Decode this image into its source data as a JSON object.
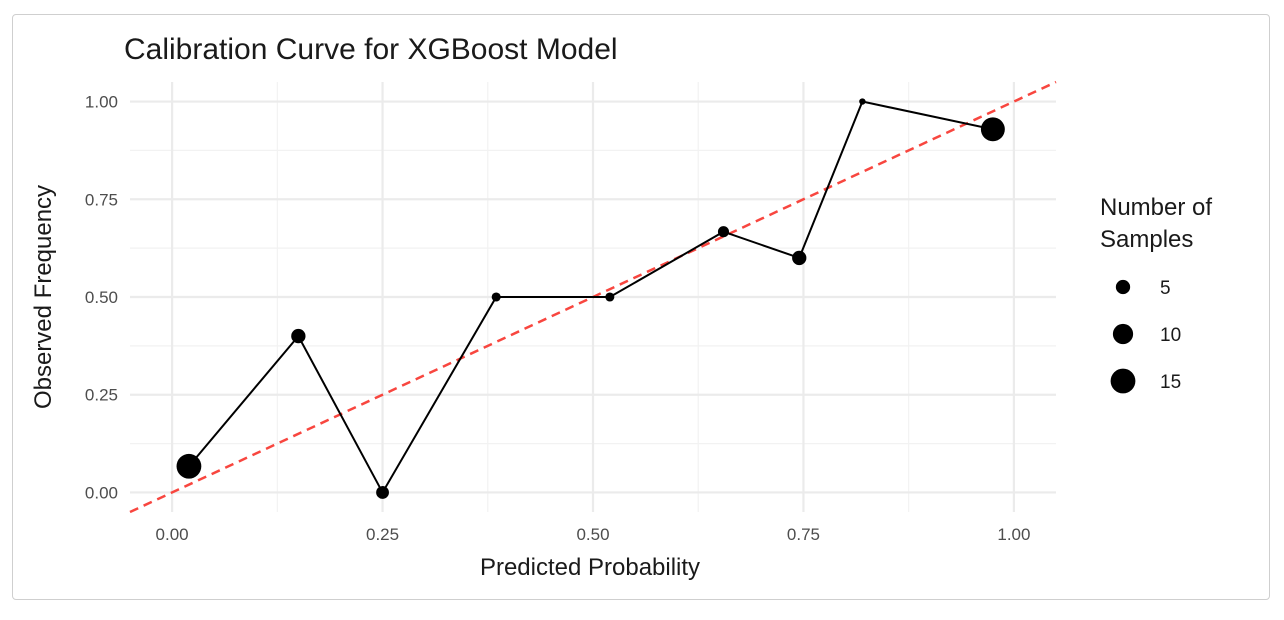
{
  "chart_data": {
    "type": "scatter",
    "title": "Calibration Curve for XGBoost Model",
    "xlabel": "Predicted Probability",
    "ylabel": "Observed Frequency",
    "xlim": [
      -0.05,
      1.05
    ],
    "ylim": [
      -0.05,
      1.05
    ],
    "x_ticks": [
      0.0,
      0.25,
      0.5,
      0.75,
      1.0
    ],
    "y_ticks": [
      0.0,
      0.25,
      0.5,
      0.75,
      1.0
    ],
    "x_tick_labels": [
      "0.00",
      "0.25",
      "0.50",
      "0.75",
      "1.00"
    ],
    "y_tick_labels": [
      "0.00",
      "0.25",
      "0.50",
      "0.75",
      "1.00"
    ],
    "grid": true,
    "reference_line": {
      "type": "diagonal",
      "x": [
        -0.05,
        1.05
      ],
      "y": [
        -0.05,
        1.05
      ],
      "color": "#f8463f",
      "style": "dashed"
    },
    "line_color": "#000000",
    "points": [
      {
        "x": 0.02,
        "y": 0.067,
        "n": 15
      },
      {
        "x": 0.15,
        "y": 0.4,
        "n": 5
      },
      {
        "x": 0.25,
        "y": 0.0,
        "n": 4
      },
      {
        "x": 0.385,
        "y": 0.5,
        "n": 2
      },
      {
        "x": 0.52,
        "y": 0.5,
        "n": 2
      },
      {
        "x": 0.655,
        "y": 0.667,
        "n": 3
      },
      {
        "x": 0.745,
        "y": 0.6,
        "n": 5
      },
      {
        "x": 0.82,
        "y": 1.0,
        "n": 1
      },
      {
        "x": 0.975,
        "y": 0.929,
        "n": 14
      }
    ],
    "legend": {
      "title": "Number of Samples",
      "title_lines": [
        "Number of",
        "Samples"
      ],
      "placement": "right",
      "entries": [
        {
          "label": "5",
          "n": 5
        },
        {
          "label": "10",
          "n": 10
        },
        {
          "label": "15",
          "n": 15
        }
      ]
    }
  }
}
